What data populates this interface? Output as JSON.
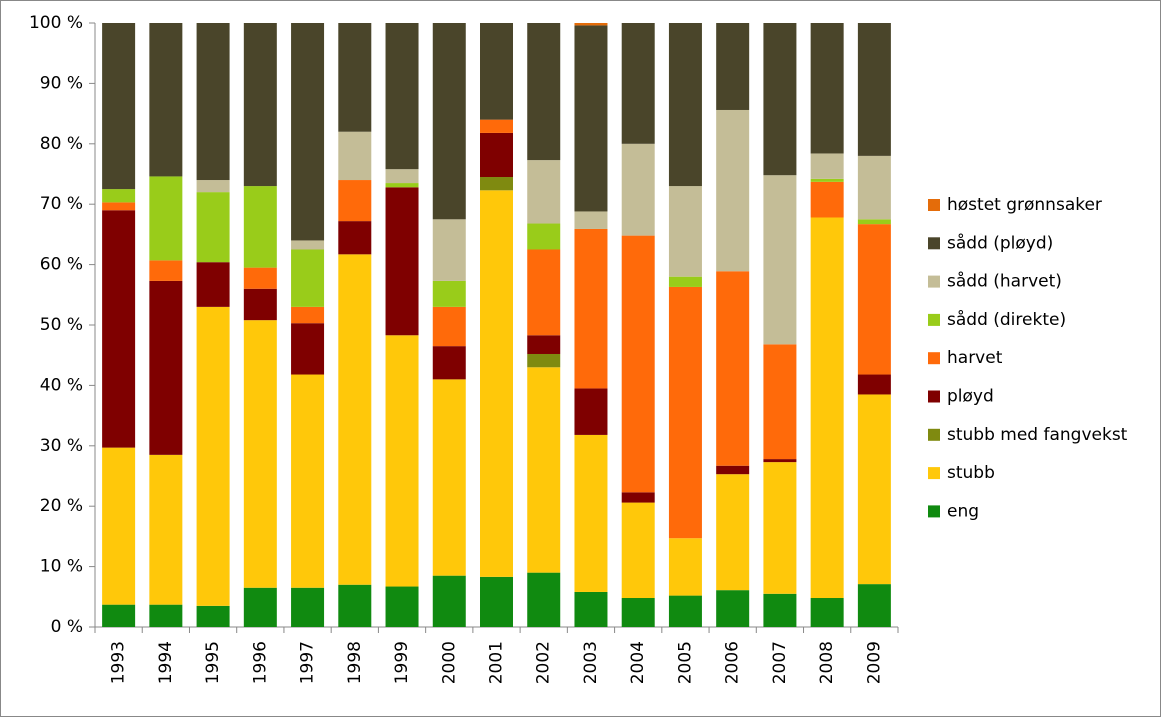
{
  "chart_data": {
    "type": "stacked-bar",
    "categories": [
      "1993",
      "1994",
      "1995",
      "1996",
      "1997",
      "1998",
      "1999",
      "2000",
      "2001",
      "2002",
      "2003",
      "2004",
      "2005",
      "2006",
      "2007",
      "2008",
      "2009"
    ],
    "ylim": [
      0,
      100
    ],
    "yticks": [
      {
        "value": 0,
        "label": "0 %"
      },
      {
        "value": 10,
        "label": "10 %"
      },
      {
        "value": 20,
        "label": "20 %"
      },
      {
        "value": 30,
        "label": "30 %"
      },
      {
        "value": 40,
        "label": "40 %"
      },
      {
        "value": 50,
        "label": "50 %"
      },
      {
        "value": 60,
        "label": "60 %"
      },
      {
        "value": 70,
        "label": "70 %"
      },
      {
        "value": 80,
        "label": "80 %"
      },
      {
        "value": 90,
        "label": "90 %"
      },
      {
        "value": 100,
        "label": "100 %"
      }
    ],
    "series": [
      {
        "name": "eng",
        "color": "#108a10",
        "values": [
          3.7,
          3.7,
          3.5,
          6.5,
          6.5,
          7,
          6.7,
          8.5,
          8.3,
          9,
          5.8,
          4.8,
          5.2,
          6.1,
          5.5,
          4.8,
          7.1
        ]
      },
      {
        "name": "stubb",
        "color": "#ffc80a",
        "values": [
          26,
          24.8,
          49.5,
          44.3,
          35.3,
          54.7,
          41.6,
          32.5,
          64,
          34,
          26,
          15.8,
          9.5,
          19.2,
          21.8,
          63,
          31.4
        ]
      },
      {
        "name": "stubb med fangvekst",
        "color": "#7f8a10",
        "values": [
          0,
          0,
          0,
          0,
          0,
          0,
          0,
          0,
          2.2,
          2.2,
          0,
          0,
          0,
          0,
          0,
          0,
          0
        ]
      },
      {
        "name": "pløyd",
        "color": "#7f0000",
        "values": [
          39.3,
          28.8,
          7.4,
          5.2,
          8.5,
          5.5,
          24.5,
          5.5,
          7.3,
          3.1,
          7.7,
          1.7,
          0,
          1.4,
          0.5,
          0,
          3.3
        ]
      },
      {
        "name": "harvet",
        "color": "#ff6a0a",
        "values": [
          1.3,
          3.4,
          0,
          3.5,
          2.7,
          6.8,
          0,
          6.5,
          2.2,
          14.2,
          26.4,
          42.5,
          41.6,
          32.2,
          19,
          5.9,
          24.9
        ]
      },
      {
        "name": "sådd (direkte)",
        "color": "#99cc1a",
        "values": [
          2.2,
          13.9,
          11.6,
          13.5,
          9.5,
          0,
          0.7,
          4.3,
          0,
          4.3,
          0,
          0,
          1.7,
          0,
          0,
          0.5,
          0.8
        ]
      },
      {
        "name": "sådd (harvet)",
        "color": "#c4bd97",
        "values": [
          0,
          0,
          2,
          0,
          1.5,
          8,
          2.3,
          10.2,
          0,
          10.5,
          2.9,
          15.2,
          15,
          26.7,
          28,
          4.2,
          10.5
        ]
      },
      {
        "name": "sådd (pløyd)",
        "color": "#4a452a",
        "values": [
          27.5,
          25.4,
          26,
          27,
          36,
          18,
          24.2,
          32.5,
          16,
          22.7,
          30.8,
          20,
          27,
          14.4,
          25.2,
          21.6,
          22
        ]
      },
      {
        "name": "høstet grønnsaker",
        "color": "#e46c0a",
        "values": [
          0,
          0,
          0,
          0,
          0,
          0,
          0,
          0,
          0,
          0,
          0.4,
          0,
          0,
          0,
          0,
          0,
          0
        ]
      }
    ]
  }
}
